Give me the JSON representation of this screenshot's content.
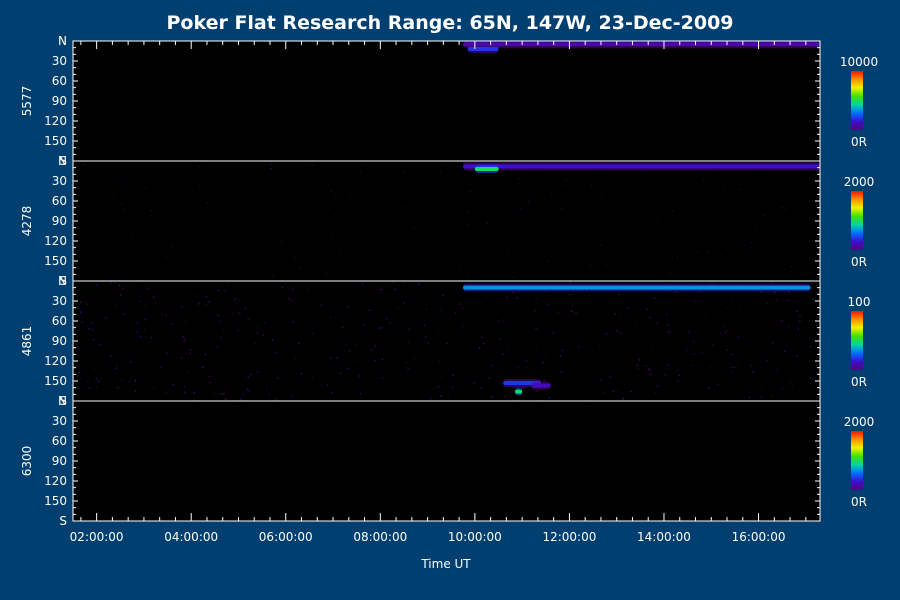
{
  "chart_data": {
    "type": "heatmap",
    "title": "Poker Flat Research Range: 65N, 147W, 23-Dec-2009",
    "xlabel": "Time UT",
    "x_ticks": [
      "02:00:00",
      "04:00:00",
      "06:00:00",
      "08:00:00",
      "10:00:00",
      "12:00:00",
      "14:00:00",
      "16:00:00"
    ],
    "x_range_hours": [
      1.5,
      17.3
    ],
    "y_ticks": [
      "N",
      "30",
      "60",
      "90",
      "120",
      "150",
      "S"
    ],
    "y_range_deg": [
      0,
      180
    ],
    "colormap": [
      "#000000",
      "#5a0080",
      "#3a10d0",
      "#0070ff",
      "#00d8a0",
      "#40e000",
      "#f0f000",
      "#ff9000",
      "#ff1000"
    ],
    "panels": [
      {
        "wavelength": "5577",
        "scale_max": "10000",
        "scale_min": "0R",
        "background_level": 0.01,
        "features": [
          {
            "start": 9.75,
            "end": 17.3,
            "zenith_angle": 5,
            "level": 0.2
          },
          {
            "start": 9.85,
            "end": 10.5,
            "zenith_angle": 12,
            "level": 0.3
          }
        ]
      },
      {
        "wavelength": "4278",
        "scale_max": "2000",
        "scale_min": "0R",
        "background_level": 0.07,
        "features": [
          {
            "start": 9.75,
            "end": 17.3,
            "zenith_angle": 8,
            "level": 0.25
          },
          {
            "start": 10.0,
            "end": 10.5,
            "zenith_angle": 12,
            "level": 0.55
          }
        ]
      },
      {
        "wavelength": "4861",
        "scale_max": "100",
        "scale_min": "0R",
        "background_level": 0.15,
        "features": [
          {
            "start": 9.75,
            "end": 17.1,
            "zenith_angle": 10,
            "level": 0.42
          },
          {
            "start": 10.6,
            "end": 11.4,
            "zenith_angle": 153,
            "level": 0.3
          },
          {
            "start": 11.2,
            "end": 11.6,
            "zenith_angle": 157,
            "level": 0.22
          },
          {
            "start": 10.85,
            "end": 11.0,
            "zenith_angle": 166,
            "level": 0.55
          }
        ]
      },
      {
        "wavelength": "6300",
        "scale_max": "2000",
        "scale_min": "0R",
        "background_level": 0.0,
        "features": []
      }
    ]
  }
}
